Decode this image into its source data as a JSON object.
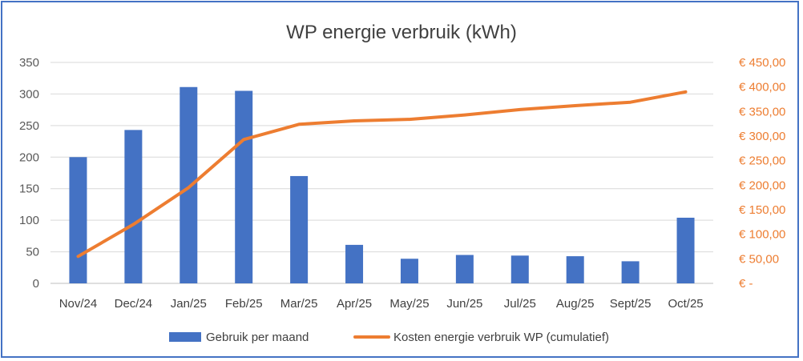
{
  "chart_data": {
    "type": "bar",
    "title": "WP energie verbruik (kWh)",
    "categories": [
      "Nov/24",
      "Dec/24",
      "Jan/25",
      "Feb/25",
      "Mar/25",
      "Apr/25",
      "May/25",
      "Jun/25",
      "Jul/25",
      "Aug/25",
      "Sept/25",
      "Oct/25"
    ],
    "series": [
      {
        "name": "Gebruik per maand",
        "type": "bar",
        "axis": "left",
        "color": "#4472c4",
        "values": [
          200,
          243,
          311,
          305,
          170,
          61,
          39,
          45,
          44,
          43,
          35,
          104
        ]
      },
      {
        "name": "Kosten energie verbruik WP (cumulatief)",
        "type": "line",
        "axis": "right",
        "color": "#ed7d31",
        "values": [
          55,
          120,
          195,
          293,
          324,
          331,
          334,
          343,
          354,
          362,
          369,
          390
        ]
      }
    ],
    "y_left": {
      "min": 0,
      "max": 350,
      "ticks": [
        "0",
        "50",
        "100",
        "150",
        "200",
        "250",
        "300",
        "350"
      ]
    },
    "y_right": {
      "min": 0,
      "max": 450,
      "ticks": [
        "€ -",
        "€ 50,00",
        "€ 100,00",
        "€ 150,00",
        "€ 200,00",
        "€ 250,00",
        "€ 300,00",
        "€ 350,00",
        "€ 400,00",
        "€ 450,00"
      ]
    },
    "grid": true,
    "legend_position": "bottom"
  }
}
